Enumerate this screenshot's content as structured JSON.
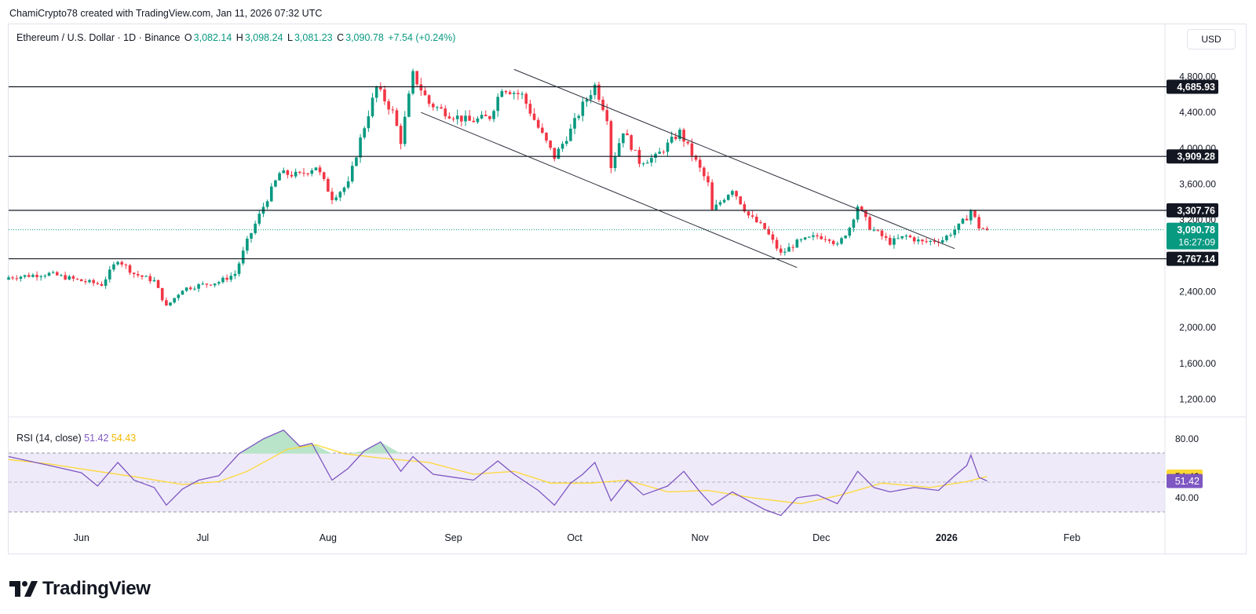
{
  "header": {
    "attribution": "ChamiCrypto78 created with TradingView.com, Jan 11, 2026 07:32 UTC"
  },
  "legend": {
    "symbol": "Ethereum / U.S. Dollar · 1D · Binance",
    "o_label": "O",
    "o_value": "3,082.14",
    "h_label": "H",
    "h_value": "3,098.24",
    "l_label": "L",
    "l_value": "3,081.23",
    "c_label": "C",
    "c_value": "3,090.78",
    "change": "+7.54 (+0.24%)"
  },
  "currency_button": "USD",
  "rsi_legend": {
    "label": "RSI (14, close)",
    "rsi_value": "51.42",
    "ma_value": "54.43"
  },
  "footer": {
    "brand": "TradingView"
  },
  "colors": {
    "up": "#089981",
    "down": "#f23645",
    "rsi": "#7e57c2",
    "rsi_ma": "#fdd835",
    "band_fill": "#efeaf9",
    "overbought_fill": "#b9e4c9"
  },
  "chart_data": [
    {
      "type": "candlestick",
      "title": "Ethereum / U.S. Dollar · 1D · Binance",
      "y_axis_ticks": [
        "4,800.00",
        "4,400.00",
        "4,000.00",
        "3,600.00",
        "3,200.00",
        "2,400.00",
        "2,000.00",
        "1,600.00",
        "1,200.00"
      ],
      "ylim": [
        1000,
        5000
      ],
      "x_axis_ticks": [
        "Jun",
        "Jul",
        "Aug",
        "Sep",
        "Oct",
        "Nov",
        "Dec",
        "2026",
        "Feb"
      ],
      "x_range": [
        "2025-05-14",
        "2026-02-24"
      ],
      "horizontal_levels": [
        "4,685.93",
        "3,909.28",
        "3,307.76",
        "2,767.14"
      ],
      "level_values": [
        4685.93,
        3909.28,
        3307.76,
        2767.14
      ],
      "last_price": {
        "label": "3,090.78",
        "value": 3090.78,
        "countdown": "16:27:09"
      },
      "channel_lines": [
        {
          "from": [
            "2025-08-24",
            4400
          ],
          "to": [
            "2025-11-25",
            2670
          ]
        },
        {
          "from": [
            "2025-09-16",
            4880
          ],
          "to": [
            "2026-01-03",
            2880
          ]
        }
      ],
      "price_path": [
        [
          "2025-05-14",
          2560
        ],
        [
          "2025-05-24",
          2600
        ],
        [
          "2025-06-01",
          2520
        ],
        [
          "2025-06-06",
          2480
        ],
        [
          "2025-06-10",
          2760
        ],
        [
          "2025-06-14",
          2600
        ],
        [
          "2025-06-19",
          2520
        ],
        [
          "2025-06-22",
          2230
        ],
        [
          "2025-06-26",
          2430
        ],
        [
          "2025-06-30",
          2470
        ],
        [
          "2025-07-05",
          2510
        ],
        [
          "2025-07-09",
          2600
        ],
        [
          "2025-07-12",
          2960
        ],
        [
          "2025-07-16",
          3350
        ],
        [
          "2025-07-20",
          3720
        ],
        [
          "2025-07-25",
          3700
        ],
        [
          "2025-07-29",
          3800
        ],
        [
          "2025-08-02",
          3450
        ],
        [
          "2025-08-06",
          3600
        ],
        [
          "2025-08-09",
          4100
        ],
        [
          "2025-08-13",
          4680
        ],
        [
          "2025-08-17",
          4400
        ],
        [
          "2025-08-19",
          4080
        ],
        [
          "2025-08-22",
          4820
        ],
        [
          "2025-08-26",
          4500
        ],
        [
          "2025-08-31",
          4380
        ],
        [
          "2025-09-05",
          4300
        ],
        [
          "2025-09-10",
          4350
        ],
        [
          "2025-09-13",
          4680
        ],
        [
          "2025-09-18",
          4590
        ],
        [
          "2025-09-22",
          4230
        ],
        [
          "2025-09-26",
          3900
        ],
        [
          "2025-09-30",
          4200
        ],
        [
          "2025-10-03",
          4480
        ],
        [
          "2025-10-06",
          4700
        ],
        [
          "2025-10-09",
          4350
        ],
        [
          "2025-10-10",
          3800
        ],
        [
          "2025-10-13",
          4200
        ],
        [
          "2025-10-17",
          3850
        ],
        [
          "2025-10-21",
          3900
        ],
        [
          "2025-10-27",
          4180
        ],
        [
          "2025-10-31",
          3850
        ],
        [
          "2025-11-03",
          3600
        ],
        [
          "2025-11-04",
          3300
        ],
        [
          "2025-11-09",
          3550
        ],
        [
          "2025-11-13",
          3250
        ],
        [
          "2025-11-17",
          3100
        ],
        [
          "2025-11-21",
          2820
        ],
        [
          "2025-11-25",
          2950
        ],
        [
          "2025-11-30",
          3020
        ],
        [
          "2025-12-03",
          3000
        ],
        [
          "2025-12-05",
          2910
        ],
        [
          "2025-12-08",
          3120
        ],
        [
          "2025-12-10",
          3360
        ],
        [
          "2025-12-13",
          3120
        ],
        [
          "2025-12-18",
          2950
        ],
        [
          "2025-12-22",
          3020
        ],
        [
          "2025-12-26",
          2950
        ],
        [
          "2025-12-31",
          2980
        ],
        [
          "2026-01-04",
          3130
        ],
        [
          "2026-01-06",
          3230
        ],
        [
          "2026-01-07",
          3310
        ],
        [
          "2026-01-09",
          3120
        ],
        [
          "2026-01-11",
          3090.78
        ]
      ]
    },
    {
      "type": "line",
      "title": "RSI (14, close)",
      "y_axis_ticks": [
        "80.00",
        "40.00"
      ],
      "ylim": [
        25,
        90
      ],
      "bands": {
        "upper": 70,
        "middle": 50,
        "lower": 30
      },
      "series": [
        {
          "name": "RSI (14, close)",
          "last_label": "51.42",
          "points": [
            [
              "2025-05-14",
              68
            ],
            [
              "2025-05-24",
              62
            ],
            [
              "2025-06-01",
              57
            ],
            [
              "2025-06-05",
              48
            ],
            [
              "2025-06-10",
              64
            ],
            [
              "2025-06-14",
              52
            ],
            [
              "2025-06-19",
              47
            ],
            [
              "2025-06-22",
              35
            ],
            [
              "2025-06-26",
              46
            ],
            [
              "2025-06-30",
              52
            ],
            [
              "2025-07-05",
              55
            ],
            [
              "2025-07-10",
              70
            ],
            [
              "2025-07-16",
              80
            ],
            [
              "2025-07-21",
              86
            ],
            [
              "2025-07-25",
              75
            ],
            [
              "2025-07-28",
              77
            ],
            [
              "2025-08-02",
              52
            ],
            [
              "2025-08-06",
              60
            ],
            [
              "2025-08-10",
              72
            ],
            [
              "2025-08-14",
              78
            ],
            [
              "2025-08-19",
              58
            ],
            [
              "2025-08-22",
              68
            ],
            [
              "2025-08-27",
              56
            ],
            [
              "2025-09-01",
              54
            ],
            [
              "2025-09-06",
              52
            ],
            [
              "2025-09-12",
              65
            ],
            [
              "2025-09-16",
              56
            ],
            [
              "2025-09-22",
              45
            ],
            [
              "2025-09-26",
              35
            ],
            [
              "2025-09-30",
              50
            ],
            [
              "2025-10-03",
              56
            ],
            [
              "2025-10-06",
              64
            ],
            [
              "2025-10-10",
              38
            ],
            [
              "2025-10-14",
              52
            ],
            [
              "2025-10-18",
              42
            ],
            [
              "2025-10-24",
              48
            ],
            [
              "2025-10-28",
              58
            ],
            [
              "2025-11-01",
              44
            ],
            [
              "2025-11-04",
              35
            ],
            [
              "2025-11-09",
              44
            ],
            [
              "2025-11-13",
              38
            ],
            [
              "2025-11-17",
              32
            ],
            [
              "2025-11-21",
              28
            ],
            [
              "2025-11-25",
              40
            ],
            [
              "2025-11-30",
              42
            ],
            [
              "2025-12-05",
              36
            ],
            [
              "2025-12-10",
              58
            ],
            [
              "2025-12-14",
              47
            ],
            [
              "2025-12-18",
              44
            ],
            [
              "2025-12-24",
              47
            ],
            [
              "2025-12-30",
              45
            ],
            [
              "2026-01-03",
              55
            ],
            [
              "2026-01-06",
              62
            ],
            [
              "2026-01-07",
              69
            ],
            [
              "2026-01-09",
              54
            ],
            [
              "2026-01-11",
              51.42
            ]
          ]
        },
        {
          "name": "MA",
          "last_label": "54.43",
          "points": [
            [
              "2025-05-14",
              66
            ],
            [
              "2025-05-24",
              63
            ],
            [
              "2025-06-05",
              58
            ],
            [
              "2025-06-15",
              54
            ],
            [
              "2025-06-26",
              49
            ],
            [
              "2025-07-05",
              51
            ],
            [
              "2025-07-12",
              58
            ],
            [
              "2025-07-22",
              73
            ],
            [
              "2025-07-29",
              76
            ],
            [
              "2025-08-05",
              70
            ],
            [
              "2025-08-14",
              67
            ],
            [
              "2025-08-26",
              64
            ],
            [
              "2025-09-06",
              56
            ],
            [
              "2025-09-16",
              58
            ],
            [
              "2025-09-25",
              50
            ],
            [
              "2025-10-05",
              50
            ],
            [
              "2025-10-14",
              52
            ],
            [
              "2025-10-24",
              44
            ],
            [
              "2025-11-03",
              45
            ],
            [
              "2025-11-14",
              40
            ],
            [
              "2025-11-26",
              36
            ],
            [
              "2025-12-06",
              42
            ],
            [
              "2025-12-16",
              50
            ],
            [
              "2025-12-28",
              47
            ],
            [
              "2026-01-06",
              51
            ],
            [
              "2026-01-11",
              54.43
            ]
          ]
        }
      ]
    }
  ]
}
